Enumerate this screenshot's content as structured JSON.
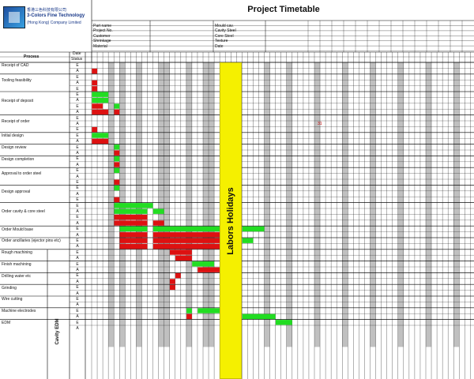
{
  "title": "Project Timetable",
  "logo": {
    "line1": "香港三色科技有限公司",
    "line2": "3-Colors Fine Technology",
    "line3": "(Hong Kong) Company Limited"
  },
  "header_fields_left": [
    "Part name",
    "Project No.",
    "Customer",
    "Shrinkage",
    "Material"
  ],
  "header_fields_right": [
    "Mould cav.",
    "Cavity Steel",
    "Core Steel",
    "Texture",
    "Date"
  ],
  "column_headers": {
    "process": "Process",
    "date": "Date",
    "status": "Status"
  },
  "status_labels": {
    "estimate": "E",
    "actual": "A"
  },
  "processes": [
    "Receipt of CAD",
    "Tooling feasibility",
    "Receipt of deposit",
    "Receipt of order",
    "Initial design",
    "Design review",
    "Design completion",
    "Approval to order steel",
    "Design approval",
    "Order cavity & core steel",
    "Order Mould base",
    "Order ancillaries (ejector pins etc)",
    "Rough machining",
    "Finish machining",
    "Drilling water etc",
    "Grinding",
    "Wire cutting",
    "Machine electrodes",
    "EDM"
  ],
  "group_label": "Cavity EDM",
  "holiday_label": "Labors Holidays",
  "stray_mark": "31",
  "colors": {
    "green": "#22dd22",
    "red": "#dd1111",
    "grey": "#c0c0c0",
    "holiday": "#f5f000"
  }
}
